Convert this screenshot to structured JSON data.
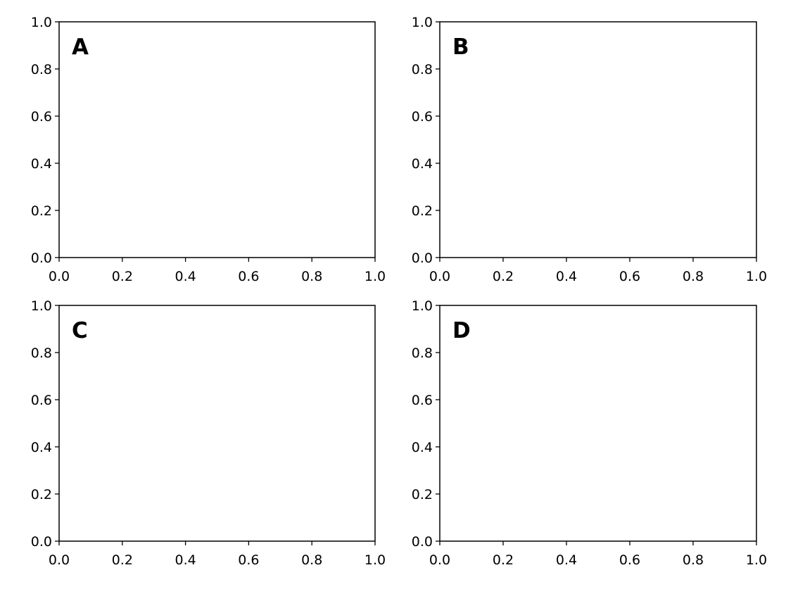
{
  "chart_data": [
    {
      "type": "line",
      "annotation": "A",
      "xlim": [
        0,
        1
      ],
      "ylim": [
        0,
        1
      ],
      "xticks": [
        {
          "value": 0,
          "label": "0.0"
        },
        0.2,
        0.4,
        0.6,
        0.8,
        {
          "value": 1,
          "label": "1.0"
        }
      ],
      "yticks": [
        {
          "value": 0,
          "label": "0.0"
        },
        0.2,
        0.4,
        0.6,
        0.8,
        {
          "value": 1,
          "label": "1.0"
        }
      ]
    },
    {
      "type": "line",
      "annotation": "B",
      "xlim": [
        0,
        1
      ],
      "ylim": [
        0,
        1
      ],
      "xticks": [
        {
          "value": 0,
          "label": "0.0"
        },
        0.2,
        0.4,
        0.6,
        0.8,
        {
          "value": 1,
          "label": "1.0"
        }
      ],
      "yticks": [
        {
          "value": 0,
          "label": "0.0"
        },
        0.2,
        0.4,
        0.6,
        0.8,
        {
          "value": 1,
          "label": "1.0"
        }
      ]
    },
    {
      "type": "line",
      "annotation": "C",
      "xlim": [
        0,
        1
      ],
      "ylim": [
        0,
        1
      ],
      "xticks": [
        {
          "value": 0,
          "label": "0.0"
        },
        0.2,
        0.4,
        0.6,
        0.8,
        {
          "value": 1,
          "label": "1.0"
        }
      ],
      "yticks": [
        {
          "value": 0,
          "label": "0.0"
        },
        0.2,
        0.4,
        0.6,
        0.8,
        {
          "value": 1,
          "label": "1.0"
        }
      ]
    },
    {
      "type": "line",
      "annotation": "D",
      "xlim": [
        0,
        1
      ],
      "ylim": [
        0,
        1
      ],
      "xticks": [
        {
          "value": 0,
          "label": "0.0"
        },
        0.2,
        0.4,
        0.6,
        0.8,
        {
          "value": 1,
          "label": "1.0"
        }
      ],
      "yticks": [
        {
          "value": 0,
          "label": "0.0"
        },
        0.2,
        0.4,
        0.6,
        0.8,
        {
          "value": 1,
          "label": "1.0"
        }
      ]
    }
  ]
}
